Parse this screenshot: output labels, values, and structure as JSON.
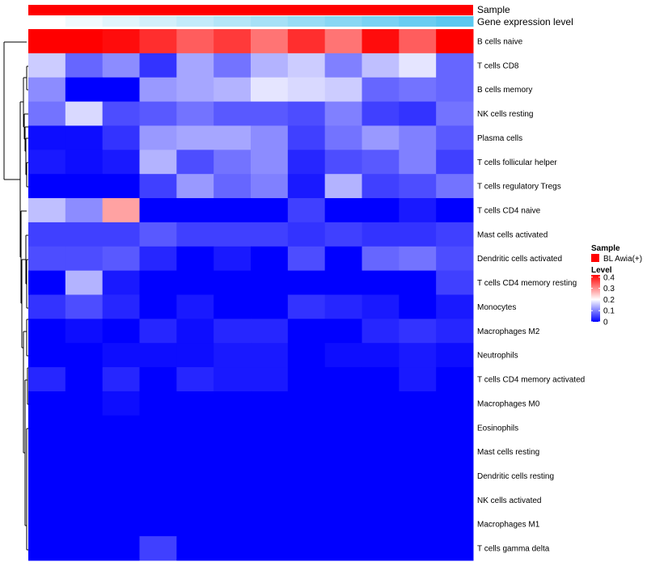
{
  "chart_data": {
    "type": "heatmap",
    "title": "",
    "annotations": [
      {
        "label": "Sample",
        "kind": "categorical"
      },
      {
        "label": "Gene expression level",
        "kind": "gradient"
      }
    ],
    "rows": [
      "B cells naive",
      "T cells CD8",
      "B cells memory",
      "NK cells resting",
      "Plasma cells",
      "T cells follicular helper",
      "T cells regulatory  Tregs",
      "T cells CD4 naive",
      "Mast cells activated",
      "Dendritic cells activated",
      "T cells CD4 memory resting",
      "Monocytes",
      "Macrophages M2",
      "Neutrophils",
      "T cells CD4 memory activated",
      "Macrophages M0",
      "Eosinophils",
      "Mast cells resting",
      "Dendritic cells resting",
      "NK cells activated",
      "Macrophages M1",
      "T cells gamma delta"
    ],
    "columns": 12,
    "values": [
      [
        0.42,
        0.42,
        0.41,
        0.38,
        0.34,
        0.37,
        0.32,
        0.38,
        0.32,
        0.41,
        0.34,
        0.42
      ],
      [
        0.16,
        0.08,
        0.11,
        0.04,
        0.13,
        0.09,
        0.14,
        0.16,
        0.1,
        0.15,
        0.18,
        0.08
      ],
      [
        0.11,
        0.0,
        0.0,
        0.12,
        0.13,
        0.14,
        0.18,
        0.17,
        0.16,
        0.08,
        0.09,
        0.08
      ],
      [
        0.09,
        0.17,
        0.06,
        0.07,
        0.09,
        0.07,
        0.07,
        0.06,
        0.1,
        0.05,
        0.04,
        0.09
      ],
      [
        0.01,
        0.01,
        0.04,
        0.12,
        0.13,
        0.13,
        0.11,
        0.05,
        0.09,
        0.12,
        0.1,
        0.07
      ],
      [
        0.02,
        0.01,
        0.02,
        0.14,
        0.06,
        0.09,
        0.11,
        0.03,
        0.06,
        0.07,
        0.1,
        0.05
      ],
      [
        0.0,
        0.0,
        0.0,
        0.05,
        0.12,
        0.08,
        0.1,
        0.02,
        0.14,
        0.05,
        0.06,
        0.09
      ],
      [
        0.15,
        0.11,
        0.28,
        0.0,
        0.0,
        0.0,
        0.0,
        0.05,
        0.0,
        0.0,
        0.02,
        0.0
      ],
      [
        0.05,
        0.05,
        0.05,
        0.07,
        0.05,
        0.05,
        0.05,
        0.04,
        0.05,
        0.04,
        0.04,
        0.05
      ],
      [
        0.06,
        0.06,
        0.07,
        0.03,
        0.0,
        0.02,
        0.0,
        0.06,
        0.0,
        0.08,
        0.09,
        0.06
      ],
      [
        0.0,
        0.14,
        0.02,
        0.0,
        0.0,
        0.0,
        0.0,
        0.0,
        0.0,
        0.0,
        0.0,
        0.05
      ],
      [
        0.04,
        0.06,
        0.03,
        0.0,
        0.02,
        0.0,
        0.0,
        0.04,
        0.03,
        0.02,
        0.0,
        0.02
      ],
      [
        0.0,
        0.01,
        0.0,
        0.03,
        0.01,
        0.03,
        0.03,
        0.0,
        0.0,
        0.03,
        0.04,
        0.03
      ],
      [
        0.0,
        0.0,
        0.01,
        0.01,
        0.01,
        0.02,
        0.02,
        0.0,
        0.01,
        0.01,
        0.02,
        0.01
      ],
      [
        0.03,
        0.0,
        0.03,
        0.0,
        0.03,
        0.02,
        0.02,
        0.0,
        0.0,
        0.0,
        0.02,
        0.0
      ],
      [
        0.0,
        0.0,
        0.01,
        0.0,
        0.0,
        0.0,
        0.0,
        0.0,
        0.0,
        0.0,
        0.0,
        0.0
      ],
      [
        0.0,
        0.0,
        0.0,
        0.0,
        0.0,
        0.0,
        0.0,
        0.0,
        0.0,
        0.0,
        0.0,
        0.0
      ],
      [
        0.0,
        0.0,
        0.0,
        0.0,
        0.0,
        0.0,
        0.0,
        0.0,
        0.0,
        0.0,
        0.0,
        0.0
      ],
      [
        0.0,
        0.0,
        0.0,
        0.0,
        0.0,
        0.0,
        0.0,
        0.0,
        0.0,
        0.0,
        0.0,
        0.0
      ],
      [
        0.0,
        0.0,
        0.0,
        0.0,
        0.0,
        0.0,
        0.0,
        0.0,
        0.0,
        0.0,
        0.0,
        0.0
      ],
      [
        0.0,
        0.0,
        0.0,
        0.0,
        0.0,
        0.0,
        0.0,
        0.0,
        0.0,
        0.0,
        0.0,
        0.0
      ],
      [
        0.0,
        0.0,
        0.0,
        0.05,
        0.0,
        0.0,
        0.0,
        0.0,
        0.0,
        0.0,
        0.0,
        0.0
      ]
    ],
    "sample_color": "#ff0000",
    "expression_gradient": [
      "#ffffff",
      "#5bc8f0"
    ],
    "color_scale": {
      "min": 0,
      "mid": 0.2,
      "max": 0.42,
      "low": "#0000ff",
      "mid_color": "#ffffff",
      "high": "#ff0000"
    },
    "legend": {
      "sample_title": "Sample",
      "sample_entry": "BL Awia(+)",
      "level_title": "Level",
      "ticks": [
        0.4,
        0.3,
        0.2,
        0.1,
        0
      ],
      "tick_labels": [
        "0.4",
        "0.3",
        "0.2",
        "0.1",
        "0"
      ],
      "position": "right"
    },
    "row_dendrogram": true
  }
}
